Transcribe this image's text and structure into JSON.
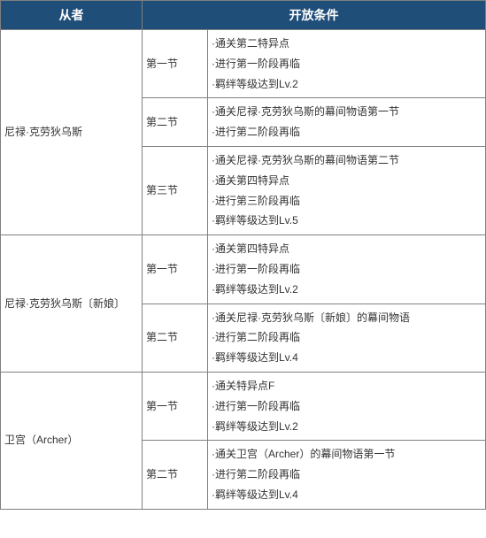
{
  "headers": {
    "servant": "从者",
    "condition": "开放条件"
  },
  "servants": [
    {
      "name": "尼禄·克劳狄乌斯",
      "sections": [
        {
          "label": "第一节",
          "conditions": [
            "·通关第二特异点",
            "·进行第一阶段再临",
            "·羁绊等级达到Lv.2"
          ]
        },
        {
          "label": "第二节",
          "conditions": [
            "·通关尼禄·克劳狄乌斯的幕间物语第一节",
            "·进行第二阶段再临"
          ]
        },
        {
          "label": "第三节",
          "conditions": [
            "·通关尼禄·克劳狄乌斯的幕间物语第二节",
            "·通关第四特异点",
            "·进行第三阶段再临",
            "·羁绊等级达到Lv.5"
          ]
        }
      ]
    },
    {
      "name": "尼禄·克劳狄乌斯〔新娘〕",
      "sections": [
        {
          "label": "第一节",
          "conditions": [
            "·通关第四特异点",
            "·进行第一阶段再临",
            "·羁绊等级达到Lv.2"
          ]
        },
        {
          "label": "第二节",
          "conditions": [
            "·通关尼禄·克劳狄乌斯〔新娘〕的幕间物语",
            "·进行第二阶段再临",
            "·羁绊等级达到Lv.4"
          ]
        }
      ]
    },
    {
      "name": "卫宫（Archer）",
      "sections": [
        {
          "label": "第一节",
          "conditions": [
            "·通关特异点F",
            "·进行第一阶段再临",
            "·羁绊等级达到Lv.2"
          ]
        },
        {
          "label": "第二节",
          "conditions": [
            "·通关卫宫（Archer）的幕间物语第一节",
            "·进行第二阶段再临",
            "·羁绊等级达到Lv.4"
          ]
        }
      ]
    }
  ]
}
